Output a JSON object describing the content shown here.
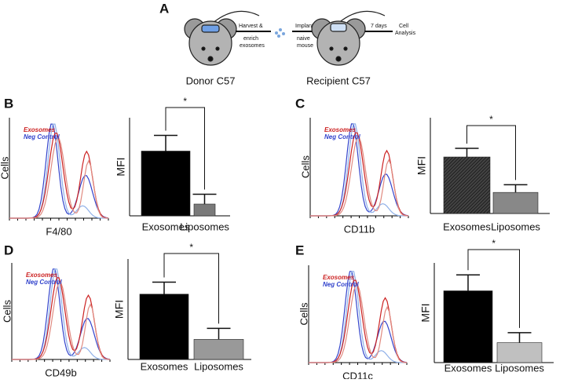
{
  "panel_a": {
    "label": "A",
    "step1": [
      "Harvest &",
      "enrich",
      "exosomes"
    ],
    "step2": [
      "Implant",
      "naive",
      "mouse"
    ],
    "step3": "7 days",
    "step4": [
      "Cell",
      "Analysis"
    ],
    "donor": "Donor C57",
    "recipient": "Recipient C57"
  },
  "histograms": [
    {
      "label": "B",
      "xlabel": "F4/80",
      "ylabel": "Cells",
      "series": [
        {
          "name": "Exosomes",
          "color": "#cc2222"
        },
        {
          "name": "Neg Control",
          "color": "#3344cc"
        }
      ]
    },
    {
      "label": "C",
      "xlabel": "CD11b",
      "ylabel": "Cells",
      "series": [
        {
          "name": "Exosomes",
          "color": "#cc2222"
        },
        {
          "name": "Neg Control",
          "color": "#3344cc"
        }
      ]
    },
    {
      "label": "D",
      "xlabel": "CD49b",
      "ylabel": "Cells",
      "series": [
        {
          "name": "Exosomes",
          "color": "#cc2222"
        },
        {
          "name": "Neg Control",
          "color": "#3344cc"
        }
      ]
    },
    {
      "label": "E",
      "xlabel": "CD11c",
      "ylabel": "Cells",
      "series": [
        {
          "name": "Exosomes",
          "color": "#cc2222"
        },
        {
          "name": "Neg Control",
          "color": "#3344cc"
        }
      ]
    }
  ],
  "chart_data": [
    {
      "type": "bar",
      "ylabel": "MFI",
      "categories": [
        "Exosomes",
        "Liposomes"
      ],
      "values": [
        66,
        12
      ],
      "errors": [
        16,
        10
      ],
      "colors": [
        "#000000",
        "#7a7a7a"
      ],
      "annotation": "*",
      "ylim": [
        0,
        100
      ]
    },
    {
      "type": "bar",
      "ylabel": "MFI",
      "categories": [
        "Exosomes",
        "Liposomes"
      ],
      "values": [
        59,
        22
      ],
      "errors": [
        9,
        8
      ],
      "colors": [
        "#333333",
        "#888888"
      ],
      "annotation": "*",
      "ylim": [
        0,
        100
      ]
    },
    {
      "type": "bar",
      "ylabel": "MFI",
      "categories": [
        "Exosomes",
        "Liposomes"
      ],
      "values": [
        65,
        20
      ],
      "errors": [
        12,
        11
      ],
      "colors": [
        "#000000",
        "#999999"
      ],
      "annotation": "*",
      "ylim": [
        0,
        100
      ]
    },
    {
      "type": "bar",
      "ylabel": "MFI",
      "categories": [
        "Exosomes",
        "Liposomes"
      ],
      "values": [
        72,
        20
      ],
      "errors": [
        16,
        10
      ],
      "colors": [
        "#000000",
        "#c0c0c0"
      ],
      "annotation": "*",
      "ylim": [
        0,
        100
      ]
    }
  ]
}
